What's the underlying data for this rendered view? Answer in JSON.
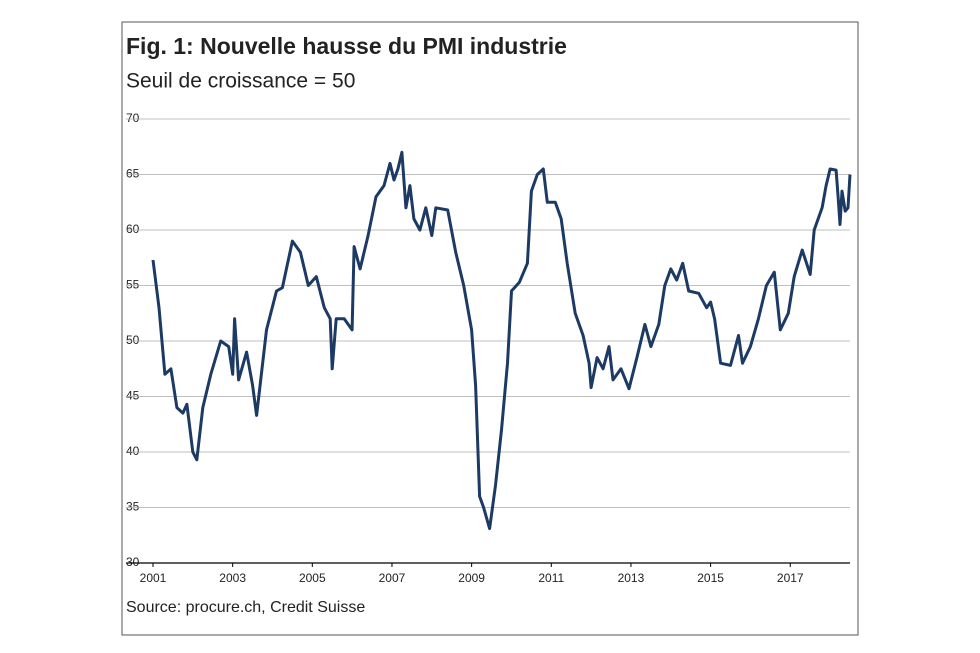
{
  "chart_data": {
    "type": "line",
    "title": "Fig. 1: Nouvelle hausse du PMI industrie",
    "subtitle": "Seuil de croissance = 50",
    "source": "Source: procure.ch, Credit Suisse",
    "x": [
      2001.0,
      2001.15,
      2001.3,
      2001.45,
      2001.6,
      2001.75,
      2001.85,
      2002.0,
      2002.1,
      2002.25,
      2002.45,
      2002.7,
      2002.9,
      2003.0,
      2003.05,
      2003.15,
      2003.35,
      2003.5,
      2003.6,
      2003.85,
      2004.1,
      2004.25,
      2004.35,
      2004.5,
      2004.7,
      2004.9,
      2005.1,
      2005.3,
      2005.45,
      2005.5,
      2005.6,
      2005.8,
      2006.0,
      2006.05,
      2006.2,
      2006.4,
      2006.6,
      2006.8,
      2006.95,
      2007.05,
      2007.15,
      2007.25,
      2007.35,
      2007.45,
      2007.55,
      2007.7,
      2007.85,
      2008.0,
      2008.1,
      2008.4,
      2008.6,
      2008.8,
      2009.0,
      2009.1,
      2009.2,
      2009.3,
      2009.45,
      2009.6,
      2009.75,
      2009.9,
      2010.0,
      2010.2,
      2010.4,
      2010.5,
      2010.65,
      2010.8,
      2010.9,
      2011.1,
      2011.25,
      2011.4,
      2011.6,
      2011.8,
      2011.95,
      2012.0,
      2012.15,
      2012.3,
      2012.45,
      2012.55,
      2012.75,
      2012.95,
      2013.15,
      2013.35,
      2013.5,
      2013.7,
      2013.85,
      2014.0,
      2014.15,
      2014.3,
      2014.45,
      2014.7,
      2014.9,
      2015.0,
      2015.1,
      2015.25,
      2015.5,
      2015.7,
      2015.8,
      2016.0,
      2016.2,
      2016.4,
      2016.6,
      2016.75,
      2016.95,
      2017.1,
      2017.3,
      2017.5,
      2017.6,
      2017.8,
      2017.9,
      2018.0,
      2018.15,
      2018.2,
      2018.25,
      2018.3,
      2018.38,
      2018.45,
      2018.5
    ],
    "series": [
      {
        "name": "PMI industrie",
        "color": "#1c3a63",
        "values": [
          57.3,
          53,
          47,
          47.5,
          44,
          43.5,
          44.3,
          40,
          39.3,
          44,
          47,
          50,
          49.5,
          47,
          52,
          46.5,
          49,
          46,
          43.3,
          51,
          54.5,
          54.8,
          56.5,
          59,
          58,
          55,
          55.8,
          53,
          52,
          47.5,
          52,
          52,
          51,
          58.5,
          56.5,
          59.5,
          63,
          64,
          66,
          64.5,
          65.5,
          67,
          62,
          64,
          61,
          60,
          62,
          59.5,
          62,
          61.8,
          58,
          55,
          51,
          46,
          36,
          35,
          33.1,
          37,
          42,
          48,
          54.5,
          55.3,
          57,
          63.5,
          65,
          65.5,
          62.5,
          62.5,
          61,
          57,
          52.5,
          50.5,
          48,
          45.8,
          48.5,
          47.5,
          49.5,
          46.5,
          47.5,
          45.7,
          48.5,
          51.5,
          49.5,
          51.5,
          55,
          56.5,
          55.5,
          57,
          54.5,
          54.3,
          53,
          53.5,
          52,
          48,
          47.8,
          50.5,
          48,
          49.5,
          52,
          55,
          56.2,
          51,
          52.5,
          55.8,
          58.2,
          56,
          60,
          62,
          64,
          65.5,
          65.4,
          63,
          60.5,
          63.5,
          61.7,
          62,
          65
        ]
      }
    ],
    "xlim": [
      2001,
      2018.5
    ],
    "xticks": [
      2001,
      2003,
      2005,
      2007,
      2009,
      2011,
      2013,
      2015,
      2017
    ],
    "ylim": [
      30,
      70
    ],
    "yticks": [
      30,
      35,
      40,
      45,
      50,
      55,
      60,
      65,
      70
    ],
    "grid": true
  }
}
